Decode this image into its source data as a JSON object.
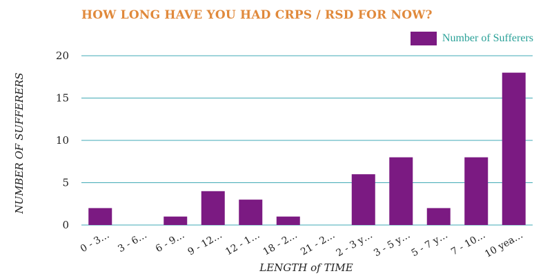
{
  "chart_data": {
    "type": "bar",
    "title": "HOW LONG HAVE YOU HAD CRPS / RSD FOR NOW?",
    "xlabel": "LENGTH of TIME",
    "ylabel": "NUMBER OF SUFFERERS",
    "categories": [
      "0 - 3…",
      "3 - 6…",
      "6 - 9…",
      "9 - 12…",
      "12 - 1…",
      "18 - 2…",
      "21 - 2…",
      "2 - 3 y…",
      "3 - 5 y…",
      "5 - 7 y…",
      "7 - 10…",
      "10 yea…"
    ],
    "series": [
      {
        "name": "Number of Sufferers",
        "values": [
          2,
          0,
          1,
          4,
          3,
          1,
          0,
          6,
          8,
          2,
          8,
          18
        ]
      }
    ],
    "ylim": [
      0,
      20
    ],
    "yticks": [
      0,
      5,
      10,
      15,
      20
    ],
    "grid": true,
    "legend_position": "top-right",
    "colors": {
      "bar": "#7B1A82",
      "grid": "#3FA9B5",
      "title": "#E0893B",
      "legend_text": "#2AA198"
    }
  }
}
